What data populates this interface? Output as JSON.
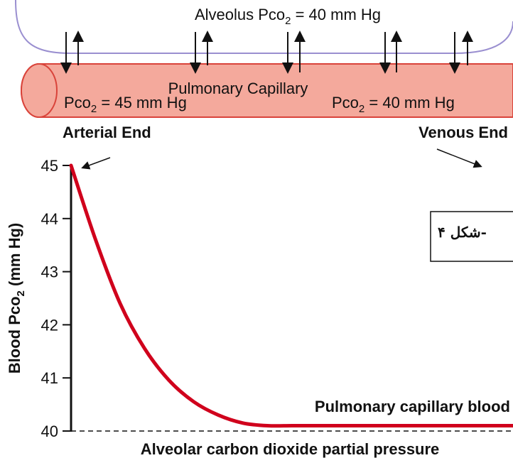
{
  "diagram": {
    "alveolus_label": [
      "Alveolus Pco",
      "2",
      " = 40 mm Hg"
    ],
    "capillary_label": "Pulmonary Capillary",
    "arterial_pco2": [
      "Pco",
      "2",
      " = 45 mm Hg"
    ],
    "venous_pco2": [
      "Pco",
      "2",
      " = 40 mm Hg"
    ],
    "arterial_end": "Arterial End",
    "venous_end": "Venous End",
    "figure_label": "شکل ۴-"
  },
  "chart_data": {
    "type": "line",
    "ylabel": [
      "Blood Pco",
      "2",
      " (mm Hg)"
    ],
    "categories": [
      null,
      null,
      null,
      null,
      null,
      null,
      null,
      null,
      null,
      null,
      null,
      null,
      null,
      null,
      null,
      null,
      null,
      null,
      null
    ],
    "series": [
      {
        "name": "Pulmonary capillary blood",
        "color": "#d0001c",
        "values": [
          45,
          43.6,
          42.4,
          41.55,
          40.95,
          40.55,
          40.3,
          40.15,
          40.1,
          40.1,
          40.1,
          40.1,
          40.1,
          40.1,
          40.1,
          40.1,
          40.1,
          40.1,
          40.1
        ]
      }
    ],
    "reference_line": {
      "value": 40,
      "label": "Alveolar carbon dioxide partial pressure"
    },
    "ylim": [
      40,
      45
    ],
    "yticks": [
      40,
      41,
      42,
      43,
      44,
      45
    ]
  }
}
